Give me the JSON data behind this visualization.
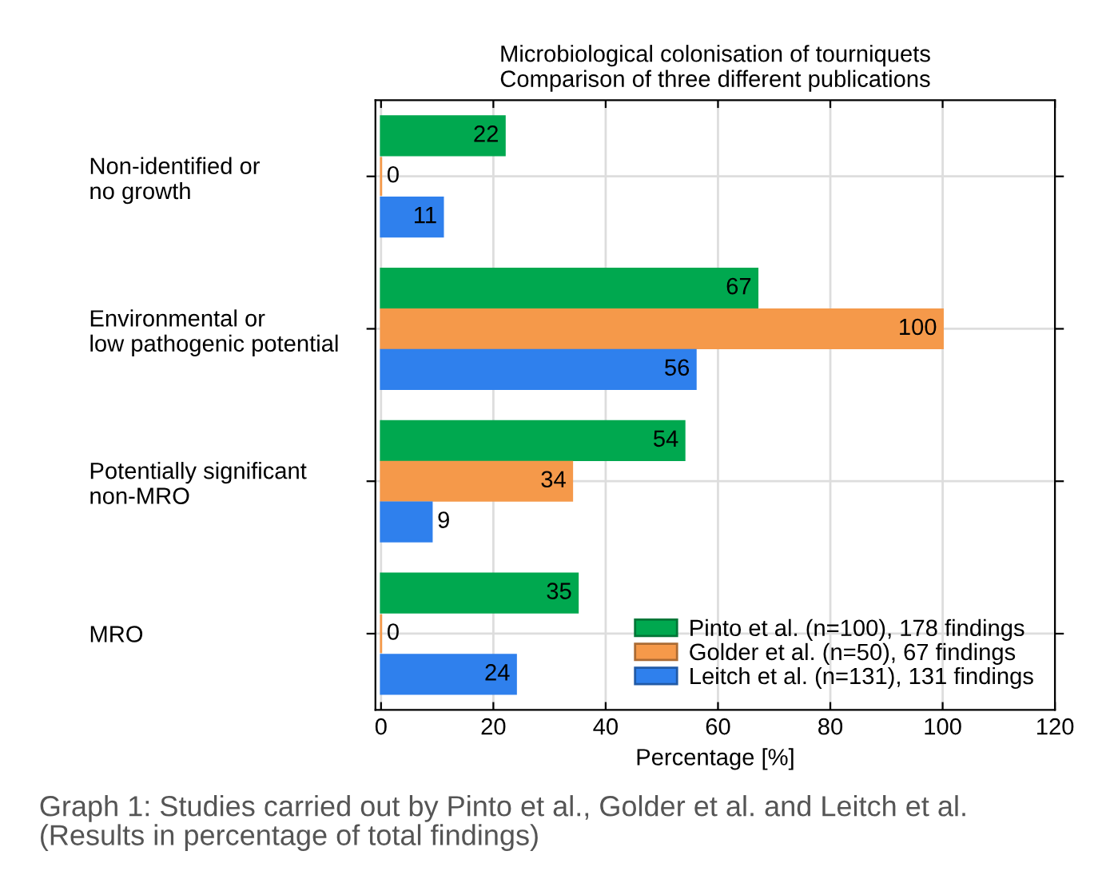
{
  "chart_data": {
    "type": "bar",
    "orientation": "horizontal",
    "title": "Microbiological colonisation of tourniquets\nComparison of three different publications",
    "xlabel": "Percentage [%]",
    "categories": [
      "Non-identified or\nno growth",
      "Environmental or\nlow pathogenic potential",
      "Potentially significant\nnon-MRO",
      "MRO"
    ],
    "series": [
      {
        "name": "Pinto et al. (n=100), 178 findings",
        "color": "#00a84f",
        "values": [
          22,
          67,
          54,
          35
        ]
      },
      {
        "name": "Golder et al. (n=50), 67 findings",
        "color": "#f5994a",
        "values": [
          0,
          100,
          34,
          0
        ]
      },
      {
        "name": "Leitch et al. (n=131), 131 findings",
        "color": "#2f80ed",
        "values": [
          11,
          56,
          9,
          24
        ]
      }
    ],
    "xlim": [
      -1,
      120
    ],
    "xticks": [
      0,
      20,
      40,
      60,
      80,
      100,
      120
    ],
    "grid": true,
    "legend": "bottom right",
    "data_labels": true,
    "annotations": [
      "Graph 1: Studies carried out by Pinto et al., Golder et al. and Leitch et al.\n(Results in percentage of total findings)"
    ]
  }
}
